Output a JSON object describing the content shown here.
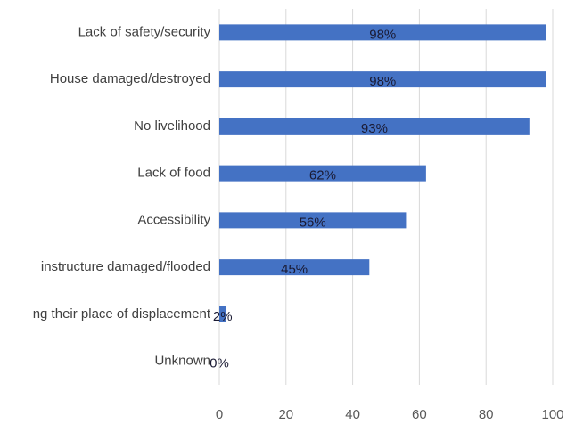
{
  "chart_data": {
    "type": "hbar",
    "categories": [
      "Lack of safety/security",
      "House damaged/destroyed",
      "No livelihood",
      "Lack of food",
      "Accessibility",
      "instructure damaged/flooded",
      "ng their place of displacement",
      "Unknown"
    ],
    "values": [
      98,
      98,
      93,
      62,
      56,
      45,
      2,
      0
    ],
    "value_labels": [
      "98%",
      "98%",
      "93%",
      "62%",
      "56%",
      "45%",
      "2%",
      "0%"
    ],
    "color": "#4472c4",
    "xlim": [
      0,
      100
    ],
    "xticks": [
      0,
      20,
      40,
      60,
      80,
      100
    ],
    "grid": true
  }
}
